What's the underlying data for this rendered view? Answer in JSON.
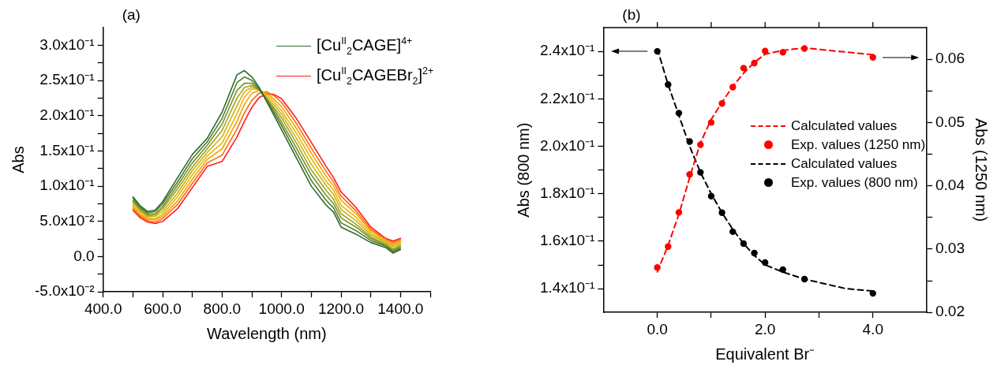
{
  "chart_data": [
    {
      "type": "line",
      "title": "(a)",
      "xlabel": "Wavelength (nm)",
      "ylabel": "Abs",
      "legend": "top right",
      "marker": "none",
      "x": [
        500,
        525,
        550,
        575,
        600,
        650,
        700,
        750,
        800,
        850,
        875,
        900,
        925,
        950,
        975,
        1000,
        1050,
        1100,
        1150,
        1175,
        1200,
        1250,
        1300,
        1350,
        1375,
        1400
      ],
      "xlim": [
        400,
        1500
      ],
      "xticks": [
        {
          "value": 400,
          "label": "400.0"
        },
        {
          "value": 500,
          "label": null
        },
        {
          "value": 600,
          "label": "600.0"
        },
        {
          "value": 700,
          "label": null
        },
        {
          "value": 800,
          "label": "800.0"
        },
        {
          "value": 900,
          "label": null
        },
        {
          "value": 1000,
          "label": "1000.0"
        },
        {
          "value": 1100,
          "label": null
        },
        {
          "value": 1200,
          "label": "1200.0"
        },
        {
          "value": 1300,
          "label": null
        },
        {
          "value": 1400,
          "label": "1400.0"
        },
        {
          "value": 1500,
          "label": null
        }
      ],
      "ylim": [
        -0.05,
        0.325
      ],
      "yticks": [
        {
          "value": -0.05,
          "label": "-5.0x10⁻²"
        },
        {
          "value": -0.025,
          "label": null
        },
        {
          "value": 0,
          "label": "0.0"
        },
        {
          "value": 0.025,
          "label": null
        },
        {
          "value": 0.05,
          "label": "5.0x10⁻²"
        },
        {
          "value": 0.075,
          "label": null
        },
        {
          "value": 0.1,
          "label": "1.0x10⁻¹"
        },
        {
          "value": 0.125,
          "label": null
        },
        {
          "value": 0.15,
          "label": "1.5x10⁻¹"
        },
        {
          "value": 0.175,
          "label": null
        },
        {
          "value": 0.2,
          "label": "2.0x10⁻¹"
        },
        {
          "value": 0.225,
          "label": null
        },
        {
          "value": 0.25,
          "label": "2.5x10⁻¹"
        },
        {
          "value": 0.275,
          "label": null
        },
        {
          "value": 0.3,
          "label": "3.0x10⁻¹"
        }
      ],
      "series": [
        {
          "name": "[Cu$^{II}$$_{2}$CAGE]$^{4+}$",
          "color": "#2e6b30",
          "values": [
            0.085,
            0.072,
            0.064,
            0.066,
            0.078,
            0.112,
            0.145,
            0.168,
            0.205,
            0.258,
            0.264,
            0.255,
            0.24,
            0.22,
            0.2,
            0.18,
            0.14,
            0.1,
            0.073,
            0.063,
            0.042,
            0.032,
            0.02,
            0.013,
            0.005,
            0.01
          ]
        },
        {
          "color": "#4f7d2c",
          "values": [
            0.083,
            0.07,
            0.062,
            0.064,
            0.075,
            0.106,
            0.139,
            0.163,
            0.196,
            0.247,
            0.255,
            0.25,
            0.238,
            0.221,
            0.204,
            0.186,
            0.147,
            0.108,
            0.08,
            0.069,
            0.048,
            0.037,
            0.023,
            0.015,
            0.007,
            0.012
          ]
        },
        {
          "color": "#7a9028",
          "values": [
            0.08,
            0.068,
            0.06,
            0.061,
            0.071,
            0.101,
            0.133,
            0.158,
            0.188,
            0.236,
            0.246,
            0.246,
            0.237,
            0.223,
            0.208,
            0.191,
            0.154,
            0.116,
            0.087,
            0.075,
            0.055,
            0.042,
            0.026,
            0.016,
            0.009,
            0.014
          ]
        },
        {
          "color": "#a3a220",
          "values": [
            0.078,
            0.066,
            0.058,
            0.059,
            0.068,
            0.096,
            0.127,
            0.153,
            0.179,
            0.225,
            0.24,
            0.243,
            0.236,
            0.224,
            0.211,
            0.197,
            0.161,
            0.123,
            0.094,
            0.081,
            0.061,
            0.046,
            0.028,
            0.018,
            0.011,
            0.016
          ]
        },
        {
          "color": "#c8b418",
          "values": [
            0.076,
            0.064,
            0.057,
            0.057,
            0.064,
            0.09,
            0.122,
            0.148,
            0.17,
            0.214,
            0.234,
            0.241,
            0.237,
            0.226,
            0.215,
            0.202,
            0.168,
            0.131,
            0.101,
            0.088,
            0.067,
            0.051,
            0.031,
            0.02,
            0.014,
            0.018
          ]
        },
        {
          "color": "#e6b800",
          "values": [
            0.073,
            0.061,
            0.055,
            0.054,
            0.06,
            0.085,
            0.116,
            0.143,
            0.161,
            0.203,
            0.226,
            0.238,
            0.237,
            0.229,
            0.219,
            0.207,
            0.175,
            0.139,
            0.107,
            0.094,
            0.073,
            0.056,
            0.034,
            0.021,
            0.016,
            0.02
          ]
        },
        {
          "color": "#f5a000",
          "values": [
            0.071,
            0.059,
            0.053,
            0.052,
            0.057,
            0.079,
            0.11,
            0.138,
            0.153,
            0.192,
            0.216,
            0.232,
            0.236,
            0.232,
            0.223,
            0.213,
            0.182,
            0.147,
            0.114,
            0.1,
            0.08,
            0.061,
            0.037,
            0.023,
            0.018,
            0.022
          ]
        },
        {
          "color": "#f86a10",
          "values": [
            0.068,
            0.057,
            0.051,
            0.049,
            0.054,
            0.074,
            0.104,
            0.133,
            0.144,
            0.181,
            0.204,
            0.222,
            0.232,
            0.234,
            0.228,
            0.219,
            0.189,
            0.154,
            0.121,
            0.106,
            0.086,
            0.065,
            0.039,
            0.025,
            0.02,
            0.024
          ]
        },
        {
          "name": "[Cu$^{II}$$_{2}$CAGEBr$_{2}$]$^{2+}$",
          "color": "#ff1a1a",
          "values": [
            0.066,
            0.055,
            0.049,
            0.047,
            0.05,
            0.068,
            0.098,
            0.128,
            0.135,
            0.17,
            0.192,
            0.212,
            0.226,
            0.231,
            0.23,
            0.224,
            0.196,
            0.162,
            0.128,
            0.112,
            0.092,
            0.07,
            0.042,
            0.026,
            0.022,
            0.026
          ]
        }
      ]
    },
    {
      "type": "scatter",
      "title": "(b)",
      "xlabel": "Equivalent Br⁻",
      "ylabel": "Abs (800 nm)",
      "y2label": "Abs (1250 nm)",
      "legend": "right",
      "xlim": [
        -1,
        5
      ],
      "xticks": [
        {
          "value": 0,
          "label": "0.0"
        },
        {
          "value": 1,
          "label": null
        },
        {
          "value": 2,
          "label": "2.0"
        },
        {
          "value": 3,
          "label": null
        },
        {
          "value": 4,
          "label": "4.0"
        }
      ],
      "ylim": [
        0.13,
        0.25
      ],
      "yticks": [
        {
          "value": 0.14,
          "label": "1.4x10⁻¹"
        },
        {
          "value": 0.15,
          "label": null
        },
        {
          "value": 0.16,
          "label": "1.6x10⁻¹"
        },
        {
          "value": 0.17,
          "label": null
        },
        {
          "value": 0.18,
          "label": "1.8x10⁻¹"
        },
        {
          "value": 0.19,
          "label": null
        },
        {
          "value": 0.2,
          "label": "2.0x10⁻¹"
        },
        {
          "value": 0.21,
          "label": null
        },
        {
          "value": 0.22,
          "label": "2.2x10⁻¹"
        },
        {
          "value": 0.23,
          "label": null
        },
        {
          "value": 0.24,
          "label": "2.4x10⁻¹"
        }
      ],
      "y2lim": [
        0.02,
        0.065
      ],
      "y2ticks": [
        0.02,
        {
          "value": 0.025,
          "label": null
        },
        0.03,
        {
          "value": 0.035,
          "label": null
        },
        0.04,
        {
          "value": 0.045,
          "label": null
        },
        0.05,
        {
          "value": 0.055,
          "label": null
        },
        0.06
      ],
      "series": [
        {
          "name": "Calculated values",
          "type": "line",
          "axis": "y2",
          "color": "#ff0000",
          "line_style": "dashed",
          "marker": "none",
          "x": [
            0,
            0.2,
            0.4,
            0.6,
            0.8,
            1.0,
            1.2,
            1.4,
            1.6,
            1.8,
            2.0,
            2.33,
            2.73,
            4.0
          ],
          "values": [
            0.0264,
            0.0306,
            0.0355,
            0.0413,
            0.0468,
            0.0505,
            0.0532,
            0.0557,
            0.0578,
            0.0595,
            0.0608,
            0.0614,
            0.0618,
            0.0607
          ]
        },
        {
          "name": "Exp. values (1250 nm)",
          "type": "scatter",
          "axis": "y2",
          "color": "#ff0000",
          "marker": "circle",
          "x": [
            0,
            0.2,
            0.4,
            0.6,
            0.8,
            1.0,
            1.2,
            1.4,
            1.6,
            1.8,
            2.0,
            2.33,
            2.73,
            4.0
          ],
          "values": [
            0.0271,
            0.0304,
            0.0358,
            0.0418,
            0.0465,
            0.05,
            0.053,
            0.0556,
            0.0586,
            0.0594,
            0.0613,
            0.0611,
            0.0617,
            0.0603
          ]
        },
        {
          "name": "Calculated values",
          "type": "line",
          "axis": "y",
          "color": "#000000",
          "line_style": "dashed",
          "marker": "none",
          "x": [
            0,
            0.2,
            0.4,
            0.6,
            0.8,
            1.0,
            1.2,
            1.4,
            1.6,
            1.8,
            2.0,
            2.33,
            2.73,
            3.5,
            4.0
          ],
          "values": [
            0.241,
            0.226,
            0.213,
            0.2,
            0.189,
            0.18,
            0.172,
            0.165,
            0.159,
            0.154,
            0.15,
            0.147,
            0.144,
            0.14,
            0.139
          ]
        },
        {
          "name": "Exp. values (800 nm)",
          "type": "scatter",
          "axis": "y",
          "color": "#000000",
          "marker": "circle",
          "x": [
            0,
            0.2,
            0.4,
            0.6,
            0.8,
            1.0,
            1.2,
            1.4,
            1.6,
            1.8,
            2.0,
            2.33,
            2.73,
            4.0
          ],
          "values": [
            0.24,
            0.226,
            0.214,
            0.202,
            0.189,
            0.179,
            0.172,
            0.164,
            0.159,
            0.155,
            0.151,
            0.148,
            0.144,
            0.138
          ]
        }
      ]
    }
  ]
}
